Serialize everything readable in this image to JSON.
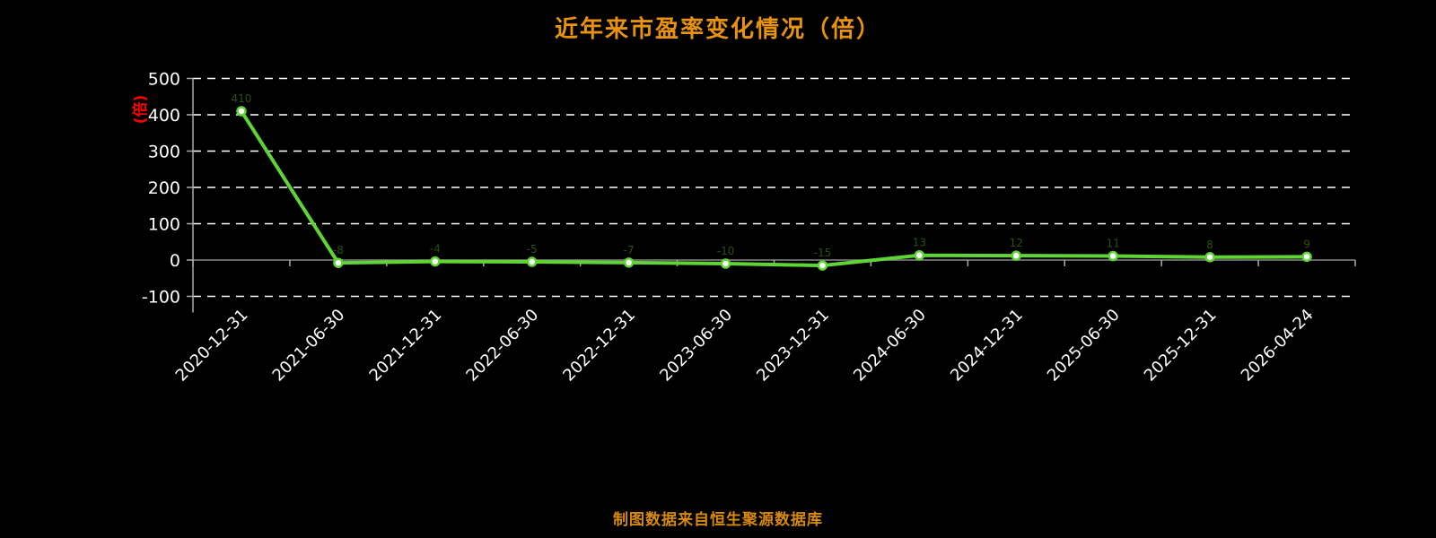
{
  "title": "近年来市盈率变化情况（倍）",
  "footer": "制图数据来自恒生聚源数据库",
  "y_axis_name": "(倍)",
  "colors": {
    "background": "#000000",
    "title": "#e8930f",
    "footer": "#d7890a",
    "line": "#5fd435",
    "marker_fill": "#ffffff",
    "grid": "#ffffff",
    "zero_axis": "#888888",
    "axis": "#aaaaaa",
    "tick_text": "#ffffff",
    "axis_name": "#ff0000",
    "point_label": "#2f4f10"
  },
  "chart_data": {
    "type": "line",
    "title": "近年来市盈率变化情况（倍）",
    "categories": [
      "2020-12-31",
      "2021-06-30",
      "2021-12-31",
      "2022-06-30",
      "2022-12-31",
      "2023-06-30",
      "2023-12-31",
      "2024-06-30",
      "2024-12-31",
      "2025-06-30",
      "2025-12-31",
      "2026-04-24"
    ],
    "values": [
      410,
      -8,
      -4,
      -5,
      -7,
      -10,
      -15,
      13,
      12,
      11,
      8,
      9
    ],
    "series_name": "市盈率",
    "xlabel": "",
    "ylabel": "(倍)",
    "ylim": [
      -100,
      500
    ],
    "y_ticks": [
      500,
      400,
      300,
      200,
      100,
      0,
      -100
    ],
    "grid": true,
    "grid_style": "dashed",
    "legend": false,
    "marker": "circle",
    "annotation": "制图数据来自恒生聚源数据库"
  }
}
